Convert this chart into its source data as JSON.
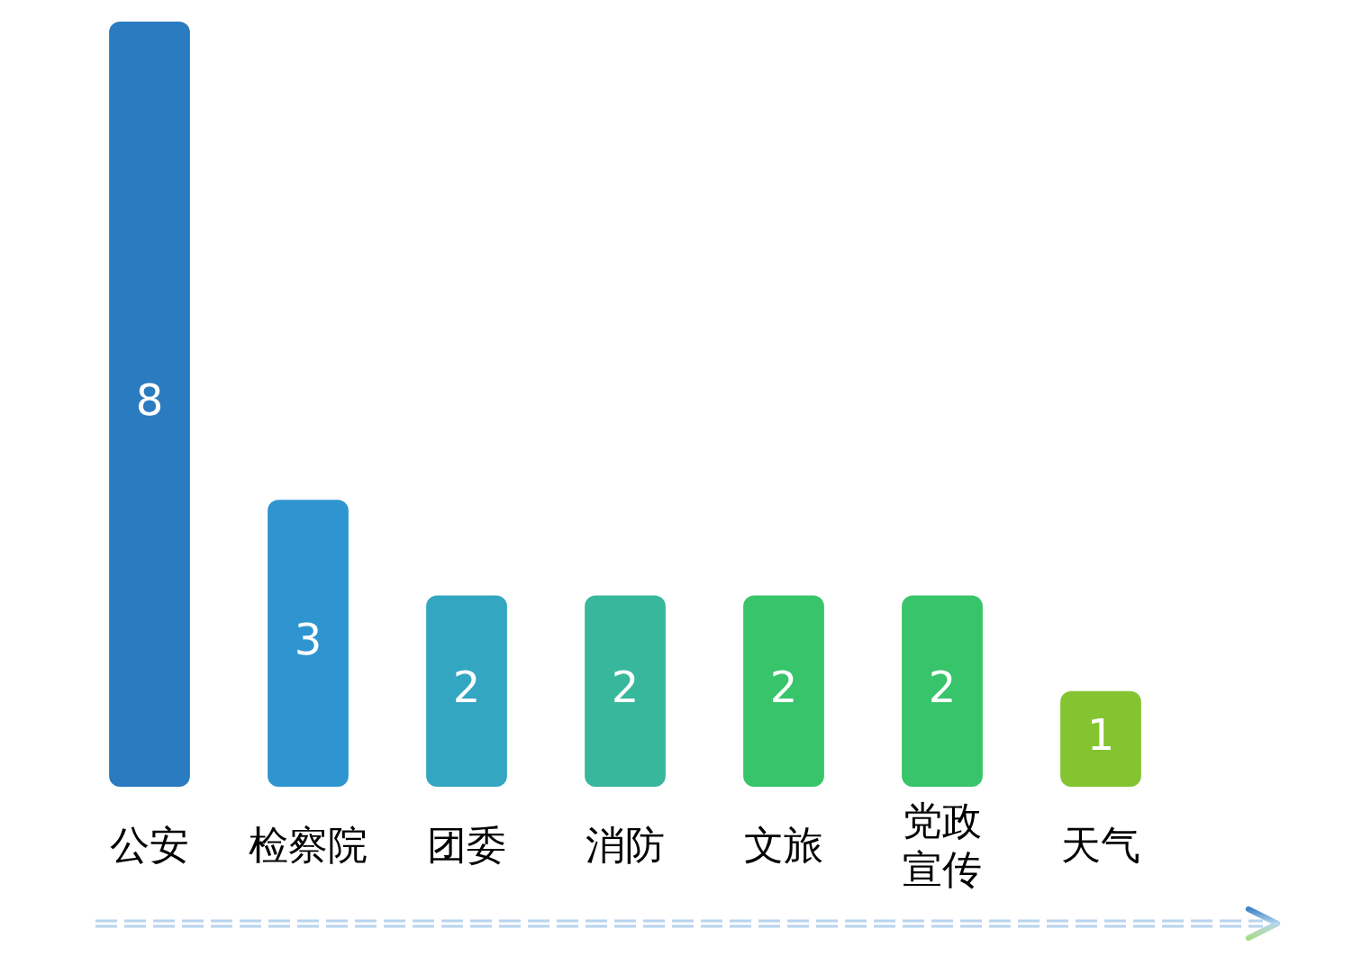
{
  "chart_data": {
    "type": "bar",
    "categories": [
      "公安",
      "检察院",
      "团委",
      "消防",
      "文旅",
      "党政宣传",
      "天气"
    ],
    "values": [
      8,
      3,
      2,
      2,
      2,
      2,
      1
    ],
    "colors": [
      "#2a7bc0",
      "#2f95d0",
      "#33a6c2",
      "#37b79b",
      "#38c46a",
      "#38c46a",
      "#84c431"
    ],
    "data_labels": true,
    "grid": false,
    "legend": false
  }
}
